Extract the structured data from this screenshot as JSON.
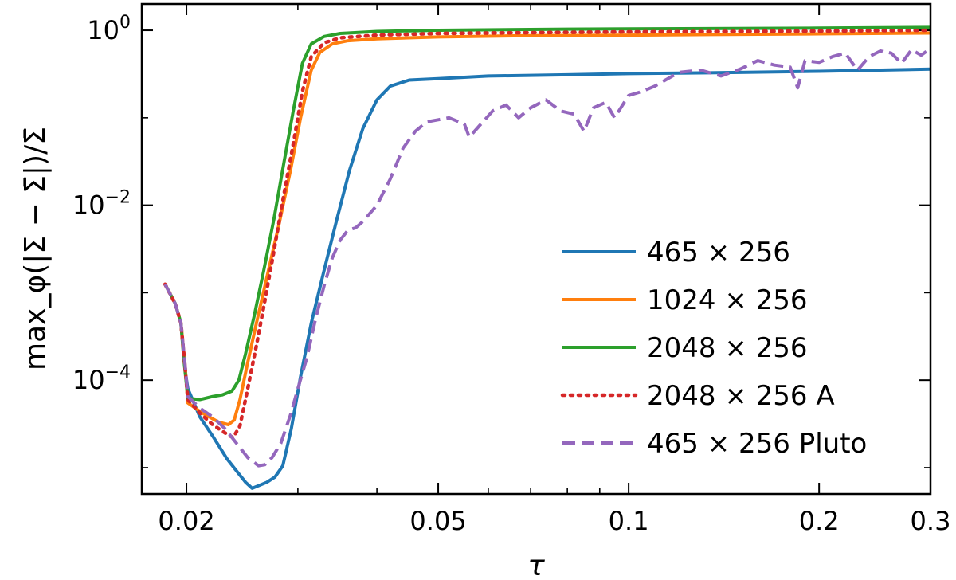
{
  "chart_data": {
    "type": "line",
    "title": "",
    "xlabel": "τ",
    "ylabel": "max_φ(|Σ − Σ̄|)/Σ̄",
    "x_scale": "log",
    "y_scale": "log",
    "xlim": [
      0.017,
      0.3
    ],
    "ylim": [
      5e-06,
      2.0
    ],
    "x_ticks": [
      {
        "value": 0.02,
        "label": "0.02"
      },
      {
        "value": 0.05,
        "label": "0.05"
      },
      {
        "value": 0.1,
        "label": "0.1"
      },
      {
        "value": 0.2,
        "label": "0.2"
      },
      {
        "value": 0.3,
        "label": "0.3"
      }
    ],
    "y_ticks": [
      {
        "value": 0.0001,
        "base": "10",
        "exp": "−4"
      },
      {
        "value": 0.01,
        "base": "10",
        "exp": "−2"
      },
      {
        "value": 1,
        "base": "10",
        "exp": "0"
      }
    ],
    "legend_position": "lower-right",
    "series": [
      {
        "name": "465 × 256",
        "color": "#1f77b4",
        "style": "solid",
        "points": [
          [
            0.0185,
            0.00125
          ],
          [
            0.0192,
            0.00075
          ],
          [
            0.0196,
            0.00045
          ],
          [
            0.0199,
            0.00013
          ],
          [
            0.0201,
            8e-05
          ],
          [
            0.021,
            3.8e-05
          ],
          [
            0.022,
            2.3e-05
          ],
          [
            0.0232,
            1.25e-05
          ],
          [
            0.0242,
            8.5e-06
          ],
          [
            0.0248,
            6.8e-06
          ],
          [
            0.0254,
            5.8e-06
          ],
          [
            0.026,
            6.2e-06
          ],
          [
            0.0268,
            6.8e-06
          ],
          [
            0.0276,
            7.8e-06
          ],
          [
            0.0284,
            1.05e-05
          ],
          [
            0.0293,
            2.8e-05
          ],
          [
            0.0303,
            0.00011
          ],
          [
            0.0315,
            0.00045
          ],
          [
            0.033,
            0.0018
          ],
          [
            0.0345,
            0.0065
          ],
          [
            0.0362,
            0.025
          ],
          [
            0.038,
            0.075
          ],
          [
            0.04,
            0.16
          ],
          [
            0.042,
            0.23
          ],
          [
            0.045,
            0.27
          ],
          [
            0.05,
            0.28
          ],
          [
            0.06,
            0.3
          ],
          [
            0.08,
            0.31
          ],
          [
            0.1,
            0.32
          ],
          [
            0.15,
            0.33
          ],
          [
            0.2,
            0.34
          ],
          [
            0.3,
            0.36
          ]
        ]
      },
      {
        "name": "1024 × 256",
        "color": "#ff7f0e",
        "style": "solid",
        "points": [
          [
            0.0185,
            0.00125
          ],
          [
            0.0192,
            0.00075
          ],
          [
            0.0196,
            0.00045
          ],
          [
            0.0199,
            0.00015
          ],
          [
            0.0201,
            5.5e-05
          ],
          [
            0.0212,
            4.2e-05
          ],
          [
            0.0225,
            3.3e-05
          ],
          [
            0.0233,
            3.1e-05
          ],
          [
            0.0238,
            3.5e-05
          ],
          [
            0.0243,
            6e-05
          ],
          [
            0.025,
            0.00016
          ],
          [
            0.0258,
            0.00045
          ],
          [
            0.0268,
            0.0015
          ],
          [
            0.028,
            0.006
          ],
          [
            0.0292,
            0.025
          ],
          [
            0.0303,
            0.1
          ],
          [
            0.0315,
            0.35
          ],
          [
            0.0325,
            0.56
          ],
          [
            0.034,
            0.7
          ],
          [
            0.036,
            0.76
          ],
          [
            0.04,
            0.8
          ],
          [
            0.05,
            0.84
          ],
          [
            0.07,
            0.87
          ],
          [
            0.1,
            0.88
          ],
          [
            0.2,
            0.91
          ],
          [
            0.3,
            0.93
          ]
        ]
      },
      {
        "name": "2048 × 256",
        "color": "#2ca02c",
        "style": "solid",
        "points": [
          [
            0.0185,
            0.00125
          ],
          [
            0.0192,
            0.00075
          ],
          [
            0.0196,
            0.00045
          ],
          [
            0.0198,
            0.00018
          ],
          [
            0.0201,
            6.2e-05
          ],
          [
            0.021,
            6e-05
          ],
          [
            0.022,
            6.5e-05
          ],
          [
            0.0228,
            6.8e-05
          ],
          [
            0.0236,
            7.5e-05
          ],
          [
            0.0242,
            0.0001
          ],
          [
            0.0248,
            0.0002
          ],
          [
            0.0256,
            0.00055
          ],
          [
            0.0265,
            0.0018
          ],
          [
            0.0275,
            0.007
          ],
          [
            0.0285,
            0.03
          ],
          [
            0.0295,
            0.12
          ],
          [
            0.0305,
            0.42
          ],
          [
            0.0315,
            0.7
          ],
          [
            0.033,
            0.85
          ],
          [
            0.035,
            0.92
          ],
          [
            0.04,
            0.97
          ],
          [
            0.05,
            1.0
          ],
          [
            0.08,
            1.03
          ],
          [
            0.1,
            1.04
          ],
          [
            0.2,
            1.06
          ],
          [
            0.3,
            1.08
          ]
        ]
      },
      {
        "name": "2048 × 256 A",
        "color": "#d62728",
        "style": "dotted",
        "points": [
          [
            0.0185,
            0.00125
          ],
          [
            0.0192,
            0.00075
          ],
          [
            0.0196,
            0.00045
          ],
          [
            0.0199,
            0.00014
          ],
          [
            0.0201,
            6e-05
          ],
          [
            0.021,
            4.2e-05
          ],
          [
            0.022,
            3.1e-05
          ],
          [
            0.023,
            2.5e-05
          ],
          [
            0.0237,
            2.2e-05
          ],
          [
            0.0243,
            3e-05
          ],
          [
            0.025,
            8e-05
          ],
          [
            0.0258,
            0.00025
          ],
          [
            0.0266,
            0.0008
          ],
          [
            0.0275,
            0.003
          ],
          [
            0.0285,
            0.013
          ],
          [
            0.0295,
            0.05
          ],
          [
            0.0305,
            0.2
          ],
          [
            0.0315,
            0.5
          ],
          [
            0.033,
            0.72
          ],
          [
            0.035,
            0.82
          ],
          [
            0.04,
            0.88
          ],
          [
            0.05,
            0.92
          ],
          [
            0.07,
            0.94
          ],
          [
            0.1,
            0.96
          ],
          [
            0.2,
            0.98
          ],
          [
            0.3,
            1.0
          ]
        ]
      },
      {
        "name": "465 × 256 Pluto",
        "color": "#9467bd",
        "style": "dashed",
        "points": [
          [
            0.0185,
            0.00125
          ],
          [
            0.0192,
            0.00075
          ],
          [
            0.0196,
            0.00045
          ],
          [
            0.0199,
            0.00015
          ],
          [
            0.0201,
            6.5e-05
          ],
          [
            0.021,
            4.8e-05
          ],
          [
            0.022,
            3.8e-05
          ],
          [
            0.023,
            2.8e-05
          ],
          [
            0.024,
            1.9e-05
          ],
          [
            0.025,
            1.3e-05
          ],
          [
            0.026,
            1.05e-05
          ],
          [
            0.0266,
            1.08e-05
          ],
          [
            0.0273,
            1.3e-05
          ],
          [
            0.0282,
            1.9e-05
          ],
          [
            0.0292,
            4e-05
          ],
          [
            0.03,
            8e-05
          ],
          [
            0.031,
            0.00018
          ],
          [
            0.032,
            0.0005
          ],
          [
            0.033,
            0.0012
          ],
          [
            0.034,
            0.0025
          ],
          [
            0.035,
            0.004
          ],
          [
            0.036,
            0.0052
          ],
          [
            0.037,
            0.0055
          ],
          [
            0.038,
            0.0065
          ],
          [
            0.04,
            0.01
          ],
          [
            0.042,
            0.02
          ],
          [
            0.044,
            0.045
          ],
          [
            0.046,
            0.07
          ],
          [
            0.048,
            0.09
          ],
          [
            0.05,
            0.095
          ],
          [
            0.052,
            0.1
          ],
          [
            0.055,
            0.085
          ],
          [
            0.056,
            0.06
          ],
          [
            0.058,
            0.08
          ],
          [
            0.061,
            0.12
          ],
          [
            0.064,
            0.14
          ],
          [
            0.067,
            0.1
          ],
          [
            0.07,
            0.13
          ],
          [
            0.074,
            0.16
          ],
          [
            0.078,
            0.12
          ],
          [
            0.082,
            0.11
          ],
          [
            0.085,
            0.07
          ],
          [
            0.088,
            0.13
          ],
          [
            0.092,
            0.15
          ],
          [
            0.095,
            0.1
          ],
          [
            0.1,
            0.18
          ],
          [
            0.105,
            0.2
          ],
          [
            0.11,
            0.23
          ],
          [
            0.12,
            0.33
          ],
          [
            0.13,
            0.35
          ],
          [
            0.14,
            0.3
          ],
          [
            0.15,
            0.36
          ],
          [
            0.16,
            0.45
          ],
          [
            0.17,
            0.4
          ],
          [
            0.18,
            0.38
          ],
          [
            0.185,
            0.22
          ],
          [
            0.19,
            0.45
          ],
          [
            0.2,
            0.43
          ],
          [
            0.21,
            0.5
          ],
          [
            0.22,
            0.55
          ],
          [
            0.23,
            0.35
          ],
          [
            0.24,
            0.5
          ],
          [
            0.25,
            0.58
          ],
          [
            0.26,
            0.55
          ],
          [
            0.27,
            0.42
          ],
          [
            0.28,
            0.6
          ],
          [
            0.29,
            0.52
          ],
          [
            0.3,
            0.62
          ]
        ]
      }
    ]
  }
}
